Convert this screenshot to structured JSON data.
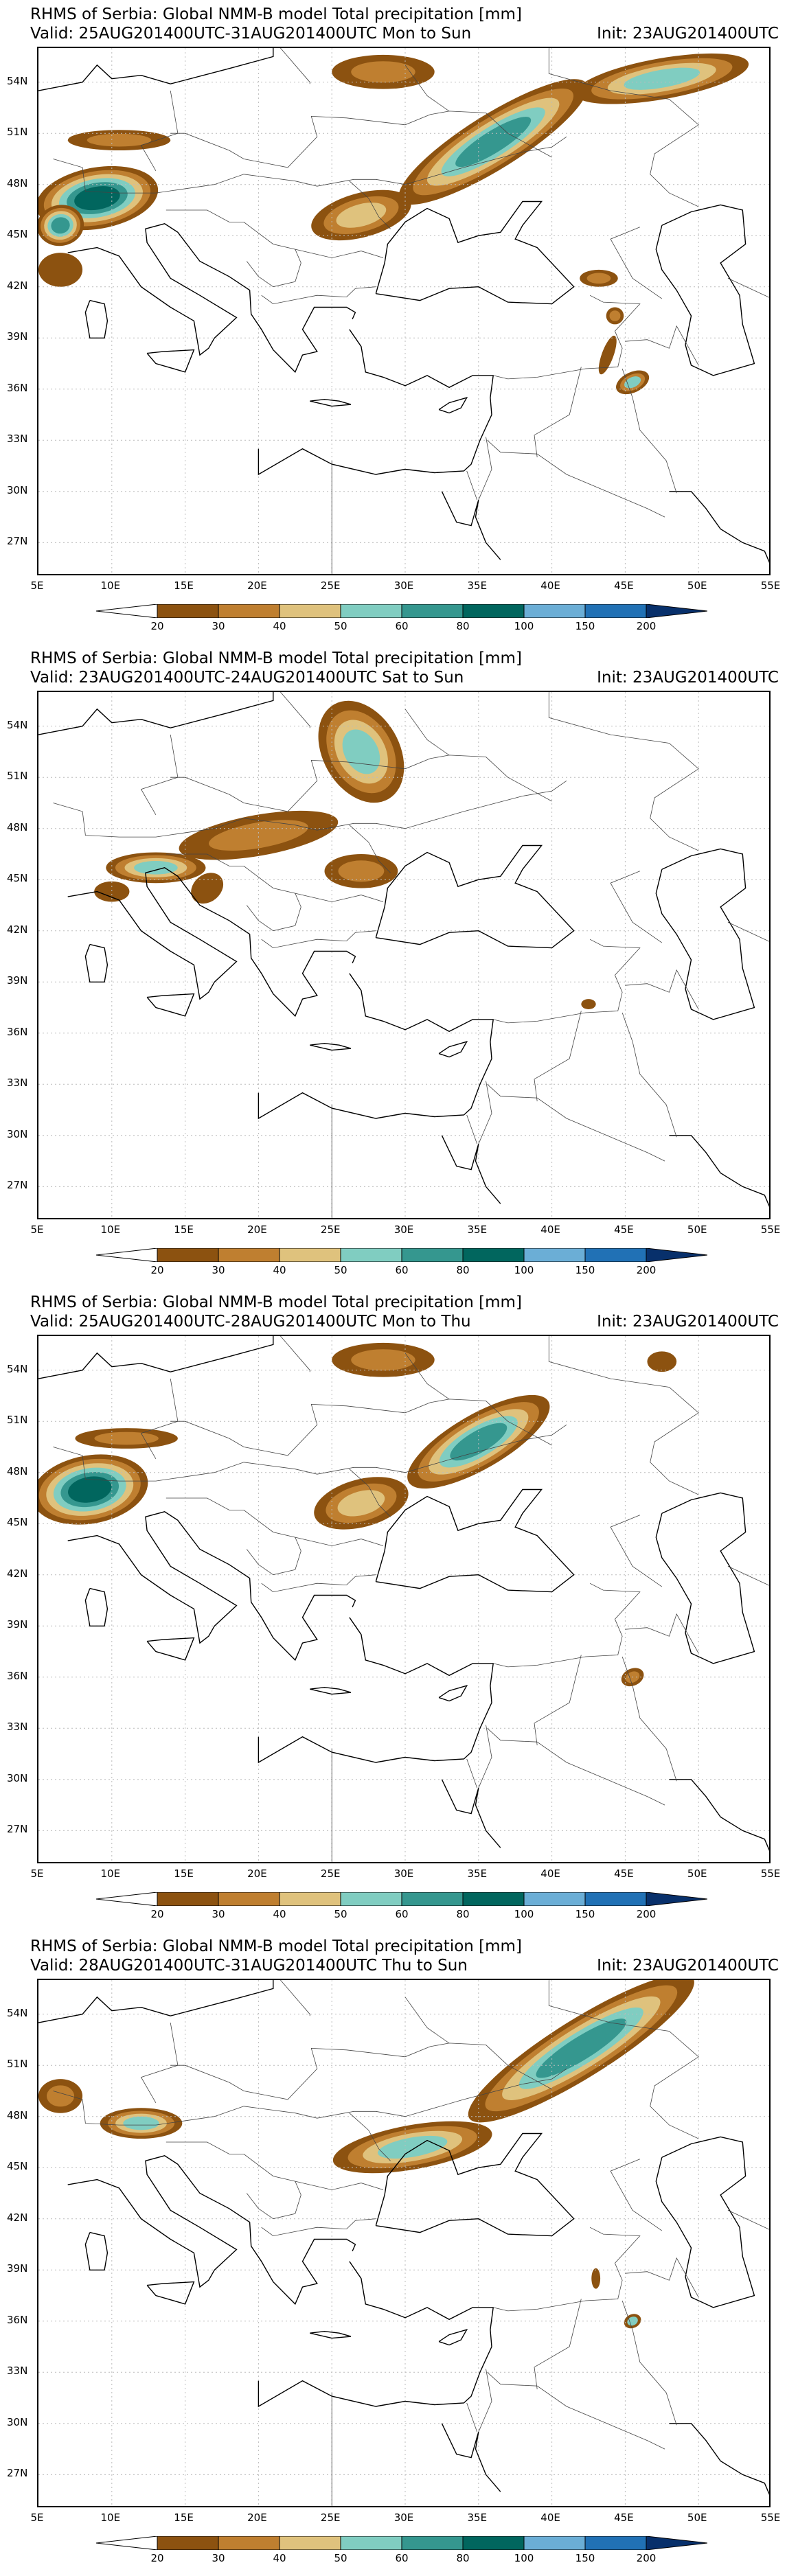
{
  "colors": {
    "c20_30": "#8c5210",
    "c30_40": "#bf7f30",
    "c40_50": "#dfc27d",
    "c50_60": "#80cdc1",
    "c60_80": "#35978f",
    "c80_100": "#01665e",
    "c100_150": "#6baed6",
    "c150_200": "#2171b5",
    "c200": "#08306b",
    "border": "#000000",
    "grid": "#bbbbbb"
  },
  "axes": {
    "lat_labels": [
      "54N",
      "51N",
      "48N",
      "45N",
      "42N",
      "39N",
      "36N",
      "33N",
      "30N",
      "27N"
    ],
    "lon_labels": [
      "5E",
      "10E",
      "15E",
      "20E",
      "25E",
      "30E",
      "35E",
      "40E",
      "45E",
      "50E",
      "55E"
    ]
  },
  "colorbar": {
    "labels": [
      "20",
      "30",
      "40",
      "50",
      "60",
      "80",
      "100",
      "150",
      "200"
    ]
  },
  "panels": [
    {
      "title": "RHMS of Serbia: Global NMM-B model Total precipitation [mm]",
      "valid": "Valid: 25AUG201400UTC-31AUG201400UTC Mon to Sun",
      "init": "Init: 23AUG201400UTC"
    },
    {
      "title": "RHMS of Serbia: Global NMM-B model Total precipitation [mm]",
      "valid": "Valid: 23AUG201400UTC-24AUG201400UTC Sat to Sun",
      "init": "Init: 23AUG201400UTC"
    },
    {
      "title": "RHMS of Serbia: Global NMM-B model Total precipitation [mm]",
      "valid": "Valid: 25AUG201400UTC-28AUG201400UTC Mon to Thu",
      "init": "Init: 23AUG201400UTC"
    },
    {
      "title": "RHMS of Serbia: Global NMM-B model Total precipitation [mm]",
      "valid": "Valid: 28AUG201400UTC-31AUG201400UTC Thu to Sun",
      "init": "Init: 23AUG201400UTC"
    }
  ]
}
